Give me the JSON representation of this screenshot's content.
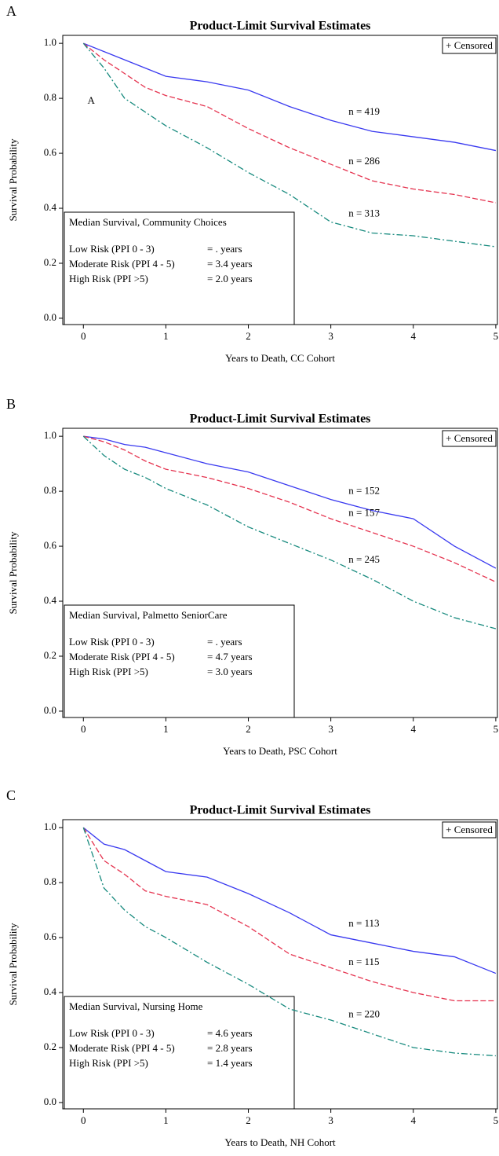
{
  "chart_data": [
    {
      "type": "line",
      "panel_label": "A",
      "title": "Product-Limit Survival Estimates",
      "xlabel": "Years to Death, CC Cohort",
      "ylabel": "Survival Probability",
      "legend_note": "+ Censored",
      "annotation": "A",
      "box_title": "Median Survival, Community Choices",
      "box_rows": [
        [
          "Low Risk (PPI 0 - 3)",
          "= . years"
        ],
        [
          "Moderate Risk (PPI 4 - 5)",
          "= 3.4 years"
        ],
        [
          "High Risk (PPI >5)",
          "= 2.0 years"
        ]
      ],
      "xlim": [
        -0.25,
        5.02
      ],
      "ylim": [
        -0.023,
        1.029
      ],
      "xticks": [
        0,
        1,
        2,
        3,
        4,
        5
      ],
      "yticks": [
        {
          "value": 0,
          "label": "0.0"
        },
        {
          "value": 0.2,
          "label": "0.2"
        },
        {
          "value": 0.4,
          "label": "0.4"
        },
        {
          "value": 0.6,
          "label": "0.6"
        },
        {
          "value": 0.8,
          "label": "0.8"
        },
        {
          "value": 1,
          "label": "1.0"
        }
      ],
      "x": [
        0,
        0.25,
        0.5,
        0.75,
        1,
        1.5,
        2,
        2.5,
        3,
        3.5,
        4,
        4.5,
        5
      ],
      "series": [
        {
          "label": "n = 419",
          "color": "#3a3af0",
          "style": "solid",
          "values": [
            1.0,
            0.97,
            0.94,
            0.91,
            0.88,
            0.86,
            0.83,
            0.77,
            0.72,
            0.68,
            0.66,
            0.64,
            0.61
          ]
        },
        {
          "label": "n = 286",
          "color": "#e5334f",
          "style": "dashed",
          "values": [
            1.0,
            0.94,
            0.89,
            0.84,
            0.81,
            0.77,
            0.69,
            0.62,
            0.56,
            0.5,
            0.47,
            0.45,
            0.42
          ]
        },
        {
          "label": "n = 313",
          "color": "#178a7e",
          "style": "dashdot",
          "values": [
            1.0,
            0.91,
            0.8,
            0.75,
            0.7,
            0.62,
            0.53,
            0.45,
            0.35,
            0.31,
            0.3,
            0.28,
            0.26
          ]
        }
      ]
    },
    {
      "type": "line",
      "panel_label": "B",
      "title": "Product-Limit Survival Estimates",
      "xlabel": "Years to Death, PSC Cohort",
      "ylabel": "Survival Probability",
      "legend_note": "+ Censored",
      "box_title": "Median Survival, Palmetto SeniorCare",
      "box_rows": [
        [
          "Low Risk (PPI 0 - 3)",
          "= . years"
        ],
        [
          "Moderate Risk (PPI 4 - 5)",
          "= 4.7 years"
        ],
        [
          "High Risk (PPI >5)",
          "= 3.0 years"
        ]
      ],
      "xlim": [
        -0.25,
        5.02
      ],
      "ylim": [
        -0.023,
        1.029
      ],
      "xticks": [
        0,
        1,
        2,
        3,
        4,
        5
      ],
      "yticks": [
        {
          "value": 0,
          "label": "0.0"
        },
        {
          "value": 0.2,
          "label": "0.2"
        },
        {
          "value": 0.4,
          "label": "0.4"
        },
        {
          "value": 0.6,
          "label": "0.6"
        },
        {
          "value": 0.8,
          "label": "0.8"
        },
        {
          "value": 1,
          "label": "1.0"
        }
      ],
      "x": [
        0,
        0.25,
        0.5,
        0.75,
        1,
        1.5,
        2,
        2.5,
        3,
        3.5,
        4,
        4.5,
        5
      ],
      "series": [
        {
          "label": "n = 152",
          "color": "#3a3af0",
          "style": "solid",
          "values": [
            1.0,
            0.99,
            0.97,
            0.96,
            0.94,
            0.9,
            0.87,
            0.82,
            0.77,
            0.73,
            0.7,
            0.6,
            0.52
          ]
        },
        {
          "label": "n = 157",
          "color": "#e5334f",
          "style": "dashed",
          "values": [
            1.0,
            0.98,
            0.95,
            0.91,
            0.88,
            0.85,
            0.81,
            0.76,
            0.7,
            0.65,
            0.6,
            0.54,
            0.47
          ]
        },
        {
          "label": "n = 245",
          "color": "#178a7e",
          "style": "dashdot",
          "values": [
            1.0,
            0.93,
            0.88,
            0.85,
            0.81,
            0.75,
            0.67,
            0.61,
            0.55,
            0.48,
            0.4,
            0.34,
            0.3
          ]
        }
      ]
    },
    {
      "type": "line",
      "panel_label": "C",
      "title": "Product-Limit Survival Estimates",
      "xlabel": "Years to Death, NH Cohort",
      "ylabel": "Survival Probability",
      "legend_note": "+ Censored",
      "box_title": "Median Survival, Nursing Home",
      "box_rows": [
        [
          "Low Risk (PPI 0 - 3)",
          "= 4.6 years"
        ],
        [
          "Moderate Risk (PPI 4 - 5)",
          "= 2.8 years"
        ],
        [
          "High Risk (PPI >5)",
          "= 1.4 years"
        ]
      ],
      "xlim": [
        -0.25,
        5.02
      ],
      "ylim": [
        -0.023,
        1.029
      ],
      "xticks": [
        0,
        1,
        2,
        3,
        4,
        5
      ],
      "yticks": [
        {
          "value": 0,
          "label": "0.0"
        },
        {
          "value": 0.2,
          "label": "0.2"
        },
        {
          "value": 0.4,
          "label": "0.4"
        },
        {
          "value": 0.6,
          "label": "0.6"
        },
        {
          "value": 0.8,
          "label": "0.8"
        },
        {
          "value": 1,
          "label": "1.0"
        }
      ],
      "x": [
        0,
        0.25,
        0.5,
        0.75,
        1,
        1.5,
        2,
        2.5,
        3,
        3.5,
        4,
        4.5,
        5
      ],
      "series": [
        {
          "label": "n = 113",
          "color": "#3a3af0",
          "style": "solid",
          "values": [
            1.0,
            0.94,
            0.92,
            0.88,
            0.84,
            0.82,
            0.76,
            0.69,
            0.61,
            0.58,
            0.55,
            0.53,
            0.47
          ]
        },
        {
          "label": "n = 115",
          "color": "#e5334f",
          "style": "dashed",
          "values": [
            1.0,
            0.88,
            0.83,
            0.77,
            0.75,
            0.72,
            0.64,
            0.54,
            0.49,
            0.44,
            0.4,
            0.37,
            0.37
          ]
        },
        {
          "label": "n = 220",
          "color": "#178a7e",
          "style": "dashdot",
          "values": [
            1.0,
            0.78,
            0.7,
            0.64,
            0.6,
            0.51,
            0.43,
            0.34,
            0.3,
            0.25,
            0.2,
            0.18,
            0.17
          ]
        }
      ]
    }
  ]
}
